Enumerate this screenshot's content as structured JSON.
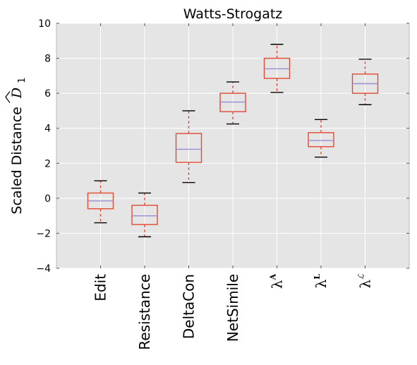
{
  "chart_data": {
    "type": "box",
    "title": "Watts-Strogatz",
    "ylabel": "Scaled Distance",
    "ylabel_symbol": "D",
    "ylabel_subscript": "1",
    "ylim": [
      -4,
      10
    ],
    "yticks": [
      "−4",
      "−2",
      "0",
      "2",
      "4",
      "6",
      "8",
      "10"
    ],
    "grid": true,
    "categories": [
      {
        "label": "Edit",
        "kind": "text"
      },
      {
        "label": "Resistance",
        "kind": "text"
      },
      {
        "label": "DeltaCon",
        "kind": "text"
      },
      {
        "label": "NetSimile",
        "kind": "text"
      },
      {
        "label": "λ",
        "kind": "lambda",
        "sup": "A",
        "sup_style": "bold"
      },
      {
        "label": "λ",
        "kind": "lambda",
        "sup": "L",
        "sup_style": "bold"
      },
      {
        "label": "λ",
        "kind": "lambda",
        "sup": "ℒ",
        "sup_style": "script"
      }
    ],
    "boxes": [
      {
        "whislo": -1.4,
        "q1": -0.6,
        "med": -0.15,
        "q3": 0.3,
        "whishi": 1.0
      },
      {
        "whislo": -2.2,
        "q1": -1.5,
        "med": -1.0,
        "q3": -0.4,
        "whishi": 0.3
      },
      {
        "whislo": 0.9,
        "q1": 2.05,
        "med": 2.8,
        "q3": 3.7,
        "whishi": 5.0
      },
      {
        "whislo": 4.25,
        "q1": 4.95,
        "med": 5.5,
        "q3": 6.0,
        "whishi": 6.65
      },
      {
        "whislo": 6.05,
        "q1": 6.85,
        "med": 7.4,
        "q3": 8.0,
        "whishi": 8.8
      },
      {
        "whislo": 2.35,
        "q1": 2.95,
        "med": 3.3,
        "q3": 3.75,
        "whishi": 4.5
      },
      {
        "whislo": 5.35,
        "q1": 6.0,
        "med": 6.55,
        "q3": 7.1,
        "whishi": 7.95
      }
    ],
    "colors": {
      "background": "#e5e5e5",
      "grid": "#ffffff",
      "box": "#e24a33",
      "median": "#8eba42",
      "median_alt": "#988ed5",
      "cap": "#000000"
    }
  }
}
